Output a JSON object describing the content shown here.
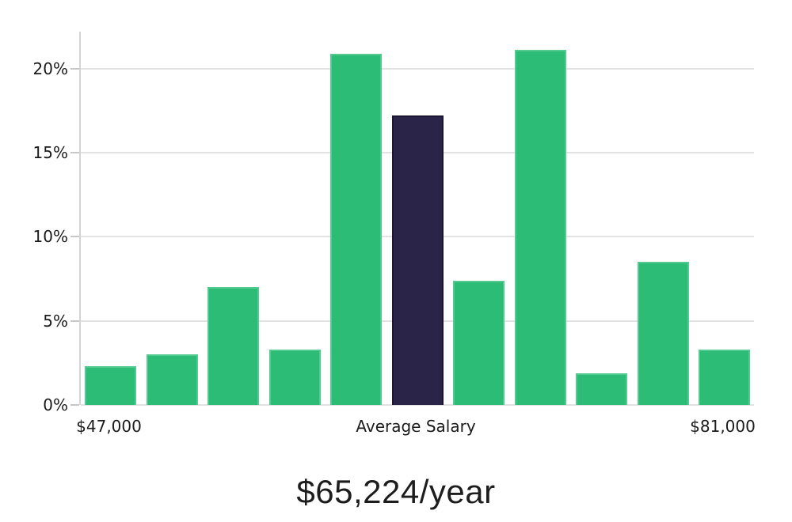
{
  "chart_data": {
    "type": "bar",
    "title": "",
    "xlabel": "",
    "ylabel": "",
    "values": [
      2.3,
      3.0,
      7.0,
      3.3,
      20.9,
      17.2,
      7.4,
      21.1,
      1.9,
      8.5,
      3.3
    ],
    "unit": "%",
    "highlighted_bar_index": 5,
    "y_ticks": [
      {
        "label": "0%",
        "value": 0
      },
      {
        "label": "5%",
        "value": 5
      },
      {
        "label": "10%",
        "value": 10
      },
      {
        "label": "15%",
        "value": 15
      },
      {
        "label": "20%",
        "value": 20
      }
    ],
    "x_tick_labels": [
      {
        "label": "$47,000",
        "bar_index": 0
      },
      {
        "label": "Average Salary",
        "bar_index": 5
      },
      {
        "label": "$81,000",
        "bar_index": 10
      }
    ],
    "ylim": [
      0,
      22.2
    ],
    "grid": true,
    "legend": false,
    "colors": {
      "bar": "#2dbc75",
      "bar_edge": "#53cb90",
      "highlight": "#2a2548",
      "highlight_edge": "#1a1633",
      "gridline": "#e2e2e2",
      "axis_line": "#d4d4d4",
      "text": "#1b1b1b"
    }
  },
  "caption": {
    "average_salary_text": "$65,224/year"
  }
}
